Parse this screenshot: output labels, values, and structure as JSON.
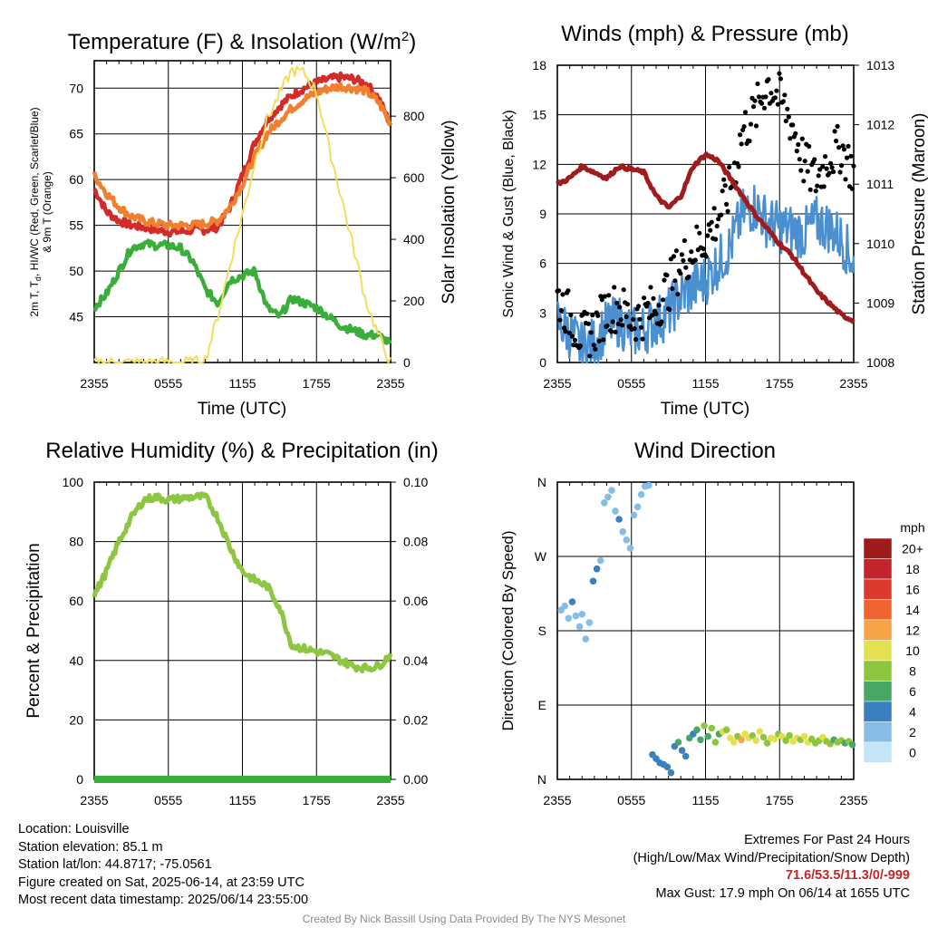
{
  "chart_data": [
    {
      "type": "line",
      "title": "Temperature (F) & Insolation (W/m",
      "title_sup": "2",
      "title_close": ")",
      "xlabel": "Time (UTC)",
      "ylabel_left_line1": "2m T, T",
      "ylabel_left_sub": "d",
      "ylabel_left_line1_rest": ", HI/WC (Red, Green, Scarlet/Blue)",
      "ylabel_left_line2": "& 9m T (Orange)",
      "ylabel_right": "Solar Insolation (Yellow)",
      "x_ticks": [
        "2355",
        "0555",
        "1155",
        "1755",
        "2355"
      ],
      "x_range_hours": [
        0,
        24
      ],
      "ylim_left": [
        40,
        73
      ],
      "yticks_left": [
        45,
        50,
        55,
        60,
        65,
        70
      ],
      "ylim_right": [
        0,
        980
      ],
      "yticks_right": [
        0,
        200,
        400,
        600,
        800
      ],
      "grid": true,
      "series": [
        {
          "color": "#d42a2a",
          "axis": "left",
          "x": [
            0,
            1,
            2,
            3,
            4,
            5,
            6,
            7,
            8,
            9,
            10,
            11,
            12,
            13,
            14,
            15,
            16,
            17,
            18,
            19,
            20,
            21,
            22,
            23,
            24
          ],
          "y": [
            59,
            56.5,
            55.5,
            55,
            54.8,
            54.5,
            54.3,
            54.3,
            54.5,
            54.5,
            54.8,
            57,
            60.5,
            64,
            66.5,
            68,
            69.2,
            70,
            70.6,
            71,
            71.2,
            71,
            70.5,
            69,
            66
          ]
        },
        {
          "color": "#f08030",
          "axis": "left",
          "x": [
            0,
            1,
            2,
            3,
            4,
            5,
            6,
            7,
            8,
            9,
            10,
            11,
            12,
            13,
            14,
            15,
            16,
            17,
            18,
            19,
            20,
            21,
            22,
            23,
            24
          ],
          "y": [
            60.5,
            58.5,
            57,
            56,
            55.5,
            55.2,
            55,
            55,
            55,
            55.2,
            55.5,
            57,
            59.5,
            62.5,
            65,
            66.5,
            67.8,
            68.8,
            69.5,
            70,
            70.2,
            70,
            69.7,
            68.5,
            66.2
          ]
        },
        {
          "color": "#3aae3a",
          "axis": "left",
          "x": [
            0,
            1,
            2,
            3,
            4,
            5,
            6,
            7,
            8,
            9,
            10,
            11,
            12,
            13,
            14,
            15,
            16,
            17,
            18,
            19,
            20,
            21,
            22,
            23,
            24
          ],
          "y": [
            46,
            47.5,
            50,
            52.5,
            53,
            52.8,
            52.8,
            52.5,
            51,
            48,
            46.5,
            49,
            49.5,
            50,
            46,
            45,
            47,
            46.5,
            46,
            45,
            44,
            43.5,
            43,
            43,
            42
          ]
        },
        {
          "color": "#f3dd5c",
          "axis": "right",
          "x": [
            0,
            1,
            2,
            3,
            4,
            5,
            6,
            7,
            8,
            9,
            10,
            11,
            12,
            13,
            14,
            15,
            16,
            17,
            18,
            19,
            20,
            21,
            22,
            23,
            24
          ],
          "y": [
            0,
            0,
            0,
            0,
            0,
            0,
            0,
            0,
            0,
            10,
            150,
            320,
            480,
            650,
            790,
            870,
            950,
            940,
            880,
            700,
            540,
            370,
            200,
            90,
            0
          ]
        }
      ]
    },
    {
      "type": "line",
      "title": "Winds (mph) & Pressure (mb)",
      "xlabel": "Time (UTC)",
      "ylabel_left": "Sonic Wind & Gust (Blue, Black)",
      "ylabel_right": "Station Pressure (Maroon)",
      "x_ticks": [
        "2355",
        "0555",
        "1155",
        "1755",
        "2355"
      ],
      "x_range_hours": [
        0,
        24
      ],
      "ylim_left": [
        0,
        18
      ],
      "yticks_left": [
        0,
        3,
        6,
        9,
        12,
        15,
        18
      ],
      "ylim_right": [
        1008,
        1013
      ],
      "yticks_right": [
        1008,
        1009,
        1010,
        1011,
        1012,
        1013
      ],
      "grid": true,
      "series": [
        {
          "color": "#4a90d0",
          "axis": "left",
          "x": [
            0,
            1,
            2,
            3,
            4,
            5,
            6,
            7,
            8,
            9,
            10,
            11,
            12,
            13,
            14,
            15,
            16,
            17,
            18,
            19,
            20,
            21,
            22,
            23,
            24
          ],
          "y": [
            2.5,
            1.8,
            0.8,
            1.2,
            2.2,
            2.5,
            1.8,
            2.0,
            2.5,
            3,
            4,
            4.5,
            5,
            6,
            7,
            9,
            9.5,
            8.5,
            8.2,
            8,
            7.8,
            8.5,
            8.2,
            7.5,
            6
          ]
        },
        {
          "color": "#000000",
          "axis": "left",
          "x": [
            0,
            1,
            2,
            3,
            4,
            5,
            6,
            7,
            8,
            9,
            10,
            11,
            12,
            13,
            14,
            15,
            16,
            17,
            18,
            19,
            20,
            21,
            22,
            23,
            24
          ],
          "y": [
            4,
            2.8,
            1.5,
            2.0,
            3.2,
            3.4,
            2.6,
            2.9,
            3.4,
            4.5,
            6,
            6.8,
            7.5,
            8.8,
            10.5,
            14,
            15,
            17,
            16,
            14.5,
            12,
            11,
            12.5,
            13,
            11.5
          ]
        },
        {
          "color": "#a01b1b",
          "axis": "right",
          "x": [
            0,
            1,
            2,
            3,
            4,
            5,
            6,
            7,
            8,
            9,
            10,
            11,
            12,
            13,
            14,
            15,
            16,
            17,
            18,
            19,
            20,
            21,
            22,
            23,
            24
          ],
          "y": [
            1011,
            1011.1,
            1011.3,
            1011.2,
            1011.1,
            1011.3,
            1011.25,
            1011.2,
            1010.8,
            1010.6,
            1010.8,
            1011.3,
            1011.5,
            1011.4,
            1011.1,
            1010.8,
            1010.5,
            1010.25,
            1010.0,
            1009.8,
            1009.5,
            1009.2,
            1009.0,
            1008.8,
            1008.7
          ]
        }
      ]
    },
    {
      "type": "line",
      "title": "Relative Humidity (%) & Precipitation (in)",
      "xlabel": "",
      "ylabel_left": "Percent & Precipitation",
      "x_ticks": [
        "2355",
        "0555",
        "1155",
        "1755",
        "2355"
      ],
      "x_range_hours": [
        0,
        24
      ],
      "ylim_left": [
        0,
        100
      ],
      "yticks_left": [
        0,
        20,
        40,
        60,
        80,
        100
      ],
      "ylim_right": [
        0,
        0.1
      ],
      "yticks_right": [
        "0.00",
        "0.02",
        "0.04",
        "0.06",
        "0.08",
        "0.10"
      ],
      "grid": true,
      "series": [
        {
          "color": "#8dc641",
          "axis": "left",
          "x": [
            0,
            1,
            2,
            3,
            4,
            5,
            6,
            7,
            8,
            9,
            10,
            11,
            12,
            13,
            14,
            15,
            16,
            17,
            18,
            19,
            20,
            21,
            22,
            23,
            24
          ],
          "y": [
            62,
            70,
            80,
            88,
            94,
            95,
            94,
            94.5,
            95,
            95,
            88,
            78,
            70,
            67,
            65,
            58,
            45,
            44,
            43,
            42,
            40,
            38,
            37.5,
            38,
            42
          ]
        },
        {
          "color": "#3aae3a",
          "axis": "right",
          "x": [
            0,
            24
          ],
          "y": [
            0,
            0
          ]
        }
      ]
    },
    {
      "type": "scatter",
      "title": "Wind Direction",
      "ylabel_left": "Direction (Colored By Speed)",
      "x_ticks": [
        "2355",
        "0555",
        "1155",
        "1755",
        "2355"
      ],
      "x_range_hours": [
        0,
        24
      ],
      "y_tick_labels": [
        "N",
        "E",
        "S",
        "W",
        "N"
      ],
      "ylim_degrees": [
        0,
        360
      ],
      "grid": true,
      "colorbar": {
        "unit": "mph",
        "labels": [
          "20+",
          "18",
          "16",
          "14",
          "12",
          "10",
          "8",
          "6",
          "4",
          "2",
          "0"
        ],
        "colors": [
          "#9e1b1b",
          "#c2252b",
          "#dc3a2e",
          "#ef6430",
          "#f7a446",
          "#e5e04f",
          "#8cc63f",
          "#46a862",
          "#3a7fc0",
          "#86bde6",
          "#c4e4f8"
        ]
      },
      "points_x": [
        0.3,
        0.6,
        0.9,
        1.2,
        1.5,
        1.8,
        2.0,
        2.3,
        2.6,
        2.9,
        3.2,
        3.5,
        3.8,
        4.1,
        4.4,
        4.7,
        5.0,
        5.3,
        5.6,
        5.9,
        6.2,
        6.5,
        6.8,
        7.1,
        7.4,
        7.7,
        8.0,
        8.3,
        8.6,
        8.9,
        9.2,
        9.5,
        9.8,
        10.1,
        10.4,
        10.7,
        11.0,
        11.3,
        11.6,
        11.9,
        12.2,
        12.5,
        12.8,
        13.1,
        13.4,
        13.7,
        14.0,
        14.3,
        14.6,
        14.9,
        15.2,
        15.5,
        15.8,
        16.1,
        16.4,
        16.7,
        17.0,
        17.3,
        17.6,
        17.9,
        18.2,
        18.5,
        18.8,
        19.1,
        19.4,
        19.7,
        20.0,
        20.3,
        20.6,
        20.9,
        21.2,
        21.5,
        21.8,
        22.1,
        22.4,
        22.7,
        23.0,
        23.3,
        23.6,
        23.9
      ],
      "points_deg": [
        205,
        210,
        195,
        215,
        198,
        185,
        200,
        170,
        190,
        240,
        255,
        265,
        335,
        342,
        350,
        325,
        315,
        300,
        290,
        280,
        320,
        330,
        345,
        355,
        356,
        30,
        25,
        20,
        18,
        15,
        8,
        40,
        45,
        35,
        28,
        50,
        55,
        60,
        48,
        65,
        52,
        62,
        45,
        55,
        58,
        60,
        50,
        45,
        52,
        48,
        55,
        50,
        53,
        47,
        58,
        51,
        44,
        50,
        49,
        55,
        52,
        47,
        53,
        46,
        50,
        48,
        52,
        45,
        49,
        44,
        47,
        51,
        46,
        43,
        48,
        45,
        47,
        44,
        46,
        42
      ],
      "points_speed": [
        1,
        2,
        1,
        3,
        2,
        1,
        2,
        1,
        1,
        3,
        3,
        2,
        2,
        1,
        2,
        2,
        3,
        2,
        2,
        1,
        1,
        2,
        2,
        1,
        2,
        4,
        3,
        4,
        3,
        4,
        3,
        4,
        5,
        3,
        4,
        5,
        4,
        6,
        5,
        7,
        6,
        8,
        7,
        6,
        9,
        8,
        10,
        9,
        8,
        11,
        9,
        10,
        8,
        9,
        10,
        7,
        8,
        9,
        10,
        8,
        9,
        7,
        8,
        10,
        9,
        8,
        9,
        10,
        7,
        8,
        7,
        9,
        8,
        7,
        6,
        8,
        7,
        6,
        7,
        6
      ]
    }
  ],
  "footer_left": {
    "location": "Location: Louisville",
    "elevation": "Station elevation: 85.1 m",
    "latlon": "Station lat/lon: 44.8717; -75.0561",
    "created": "Figure created on Sat, 2025-06-14, at 23:59 UTC",
    "recent": "Most recent data timestamp: 2025/06/14 23:55:00"
  },
  "footer_right": {
    "line1": "Extremes For Past 24 Hours",
    "line2": "(High/Low/Max Wind/Precipitation/Snow Depth)",
    "values": "71.6/53.5/11.3/0/-999",
    "gust": "Max Gust: 17.9 mph On 06/14 at 1655 UTC"
  },
  "credit": "Created By Nick Bassill Using Data Provided By The NYS Mesonet"
}
